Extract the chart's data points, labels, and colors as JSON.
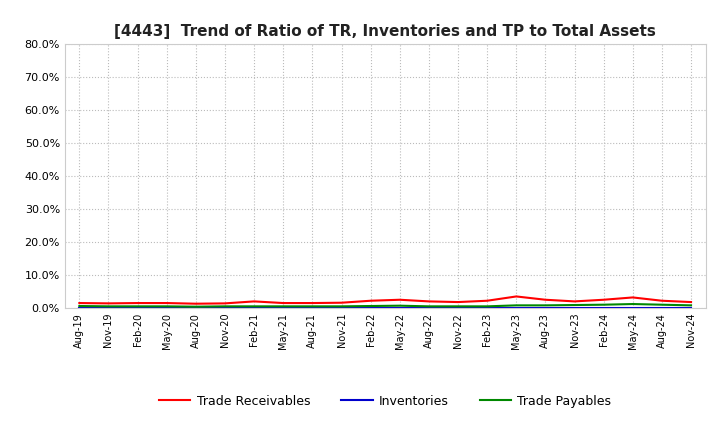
{
  "title": "[4443]  Trend of Ratio of TR, Inventories and TP to Total Assets",
  "x_labels": [
    "Aug-19",
    "Nov-19",
    "Feb-20",
    "May-20",
    "Aug-20",
    "Nov-20",
    "Feb-21",
    "May-21",
    "Aug-21",
    "Nov-21",
    "Feb-22",
    "May-22",
    "Aug-22",
    "Nov-22",
    "Feb-23",
    "May-23",
    "Aug-23",
    "Nov-23",
    "Feb-24",
    "May-24",
    "Aug-24",
    "Nov-24"
  ],
  "trade_receivables": [
    1.5,
    1.4,
    1.5,
    1.5,
    1.3,
    1.4,
    2.0,
    1.5,
    1.5,
    1.6,
    2.2,
    2.5,
    2.0,
    1.8,
    2.2,
    3.5,
    2.5,
    2.0,
    2.5,
    3.2,
    2.2,
    1.8
  ],
  "inventories": [
    0.05,
    0.05,
    0.05,
    0.05,
    0.05,
    0.05,
    0.05,
    0.05,
    0.05,
    0.05,
    0.05,
    0.05,
    0.05,
    0.05,
    0.05,
    0.05,
    0.05,
    0.05,
    0.05,
    0.05,
    0.05,
    0.05
  ],
  "trade_payables": [
    0.6,
    0.5,
    0.5,
    0.5,
    0.4,
    0.5,
    0.5,
    0.5,
    0.5,
    0.5,
    0.6,
    0.7,
    0.5,
    0.5,
    0.5,
    0.8,
    0.8,
    0.9,
    1.0,
    1.2,
    1.0,
    0.8
  ],
  "tr_color": "#ff0000",
  "inv_color": "#0000cc",
  "tp_color": "#008800",
  "bg_color": "#ffffff",
  "plot_bg_color": "#ffffff",
  "ylim": [
    0,
    80
  ],
  "yticks": [
    0,
    10,
    20,
    30,
    40,
    50,
    60,
    70,
    80
  ],
  "legend_labels": [
    "Trade Receivables",
    "Inventories",
    "Trade Payables"
  ],
  "title_fontsize": 11,
  "grid_color": "#bbbbbb",
  "line_width": 1.5
}
